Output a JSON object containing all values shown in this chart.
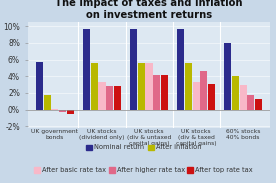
{
  "title": "The impact of taxes and inflation\non investment returns",
  "categories": [
    "UK government\nbonds",
    "UK stocks\n(dividend only)",
    "UK stocks\n(div & untaxed\ncapital gains)",
    "UK stocks\n(div & taxed\ncapital gains)",
    "60% stocks\n40% bonds"
  ],
  "series": {
    "Nominal return": [
      5.7,
      9.7,
      9.7,
      9.7,
      8.0
    ],
    "After inflation": [
      1.8,
      5.6,
      5.6,
      5.6,
      4.0
    ],
    "After basic rate tax": [
      0.05,
      3.3,
      5.6,
      3.3,
      3.0
    ],
    "After higher rate tax": [
      -0.25,
      2.8,
      4.1,
      4.6,
      1.8
    ],
    "After top rate tax": [
      -0.55,
      2.8,
      4.1,
      3.1,
      1.3
    ]
  },
  "colors": {
    "Nominal return": "#2b2b8c",
    "After inflation": "#b8b800",
    "After basic rate tax": "#f8b8c8",
    "After higher rate tax": "#e06888",
    "After top rate tax": "#cc1111"
  },
  "ylim": [
    -2.2,
    10.5
  ],
  "yticks": [
    -2,
    0,
    2,
    4,
    6,
    8,
    10
  ],
  "ytick_labels": [
    "-2%",
    "0%",
    "2%",
    "4%",
    "6%",
    "8%",
    "10%"
  ],
  "background_color": "#c8d8e8",
  "plot_bg": "#dde8f2",
  "title_fontsize": 7.2,
  "legend_fontsize": 4.8,
  "tick_fontsize": 5.5,
  "cat_fontsize": 4.3,
  "legend": [
    {
      "label": "Nominal return",
      "color": "#2b2b8c"
    },
    {
      "label": "After inflation",
      "color": "#b8b800"
    },
    {
      "label": "After basic rate tax",
      "color": "#f8b8c8"
    },
    {
      "label": "After higher rate tax",
      "color": "#e06888"
    },
    {
      "label": "After top rate tax",
      "color": "#cc1111"
    }
  ]
}
